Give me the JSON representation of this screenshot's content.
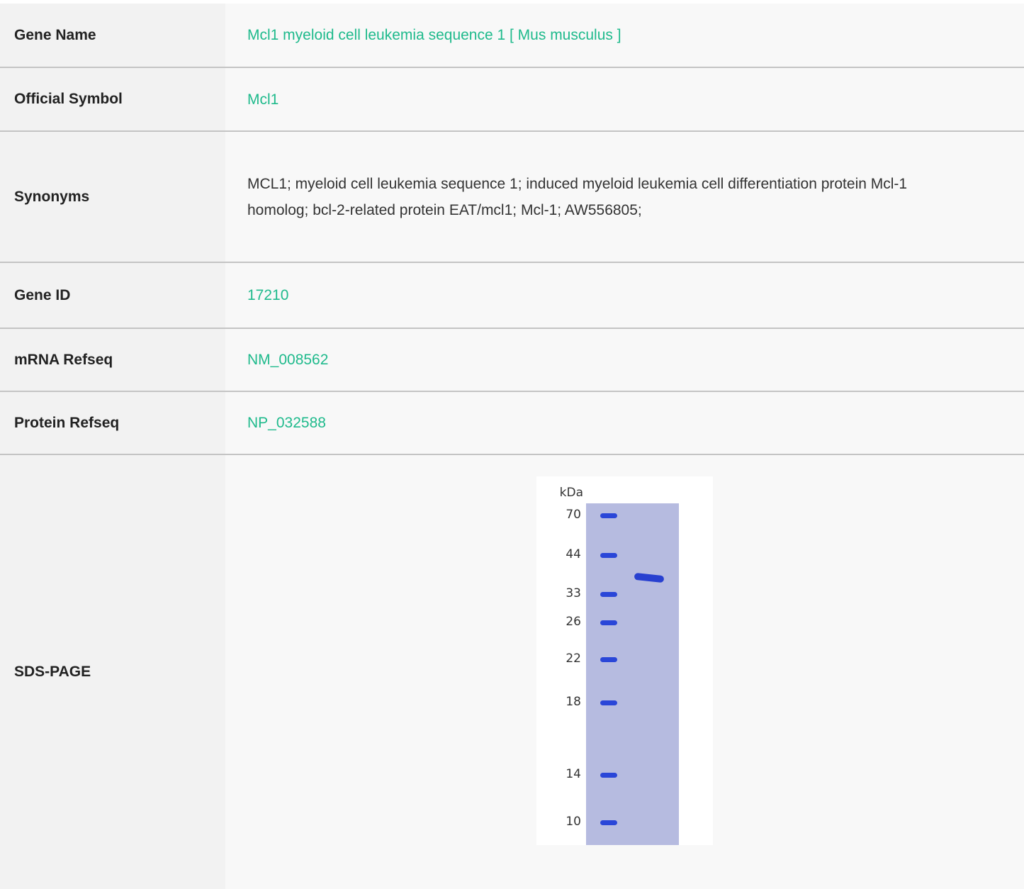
{
  "rows": [
    {
      "label": "Gene Name",
      "value": "Mcl1 myeloid cell leukemia sequence 1 [ Mus musculus ]",
      "link": true
    },
    {
      "label": "Official Symbol",
      "value": "Mcl1",
      "link": true
    },
    {
      "label": "Synonyms",
      "value": "MCL1; myeloid cell leukemia sequence 1; induced myeloid leukemia cell differentiation protein Mcl-1 homolog; bcl-2-related protein EAT/mcl1; Mcl-1; AW556805;",
      "link": false
    },
    {
      "label": "Gene ID",
      "value": "17210",
      "link": true
    },
    {
      "label": "mRNA Refseq",
      "value": "NM_008562",
      "link": true
    },
    {
      "label": "Protein Refseq",
      "value": "NP_032588",
      "link": true
    }
  ],
  "gel": {
    "label": "SDS-PAGE",
    "unit": "kDa",
    "markers": [
      70,
      44,
      33,
      26,
      22,
      18,
      14,
      10
    ]
  }
}
